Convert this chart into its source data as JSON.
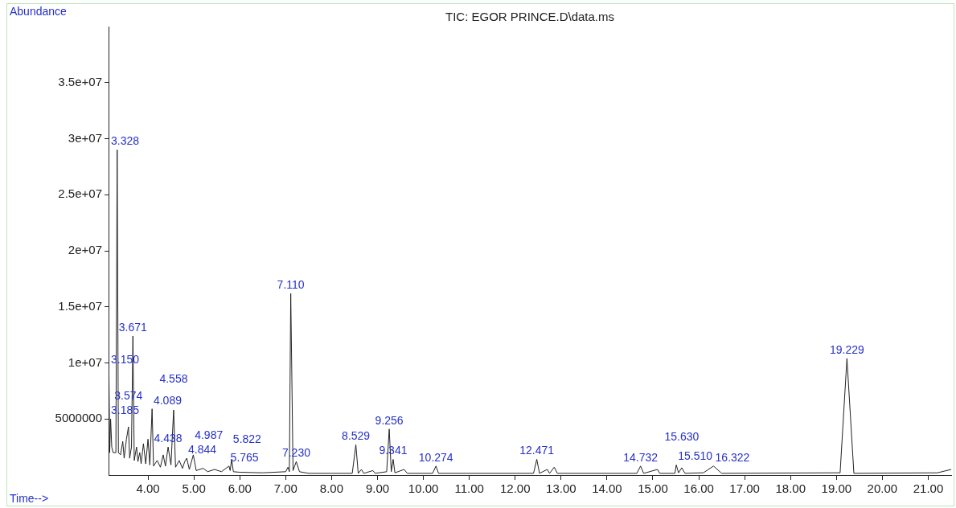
{
  "chart_data": {
    "type": "line",
    "title": "TIC: EGOR PRINCE.D\\data.ms",
    "xlabel": "Time-->",
    "ylabel": "Abundance",
    "xlim": [
      3.14,
      21.5
    ],
    "ylim": [
      0,
      40000000
    ],
    "xticks": [
      {
        "value": 4,
        "label": "4.00"
      },
      {
        "value": 5,
        "label": "5.00"
      },
      {
        "value": 6,
        "label": "6.00"
      },
      {
        "value": 7,
        "label": "7.00"
      },
      {
        "value": 8,
        "label": "8.00"
      },
      {
        "value": 9,
        "label": "9.00"
      },
      {
        "value": 10,
        "label": "10.00"
      },
      {
        "value": 11,
        "label": "11.00"
      },
      {
        "value": 12,
        "label": "12.00"
      },
      {
        "value": 13,
        "label": "13.00"
      },
      {
        "value": 14,
        "label": "14.00"
      },
      {
        "value": 15,
        "label": "15.00"
      },
      {
        "value": 16,
        "label": "16.00"
      },
      {
        "value": 17,
        "label": "17.00"
      },
      {
        "value": 18,
        "label": "18.00"
      },
      {
        "value": 19,
        "label": "19.00"
      },
      {
        "value": 20,
        "label": "20.00"
      },
      {
        "value": 21,
        "label": "21.00"
      }
    ],
    "yticks": [
      5000000,
      {
        "value": 10000000,
        "label": "1e+07"
      },
      {
        "value": 15000000,
        "label": "1.5e+07"
      },
      {
        "value": 20000000,
        "label": "2e+07"
      },
      {
        "value": 25000000,
        "label": "2.5e+07"
      },
      {
        "value": 30000000,
        "label": "3e+07"
      },
      {
        "value": 35000000,
        "label": "3.5e+07"
      }
    ],
    "series": [
      {
        "color": "#222222",
        "x": [
          3.14,
          3.145,
          3.15,
          3.165,
          3.185,
          3.21,
          3.24,
          3.3,
          3.328,
          3.355,
          3.4,
          3.45,
          3.48,
          3.53,
          3.574,
          3.6,
          3.64,
          3.671,
          3.7,
          3.75,
          3.78,
          3.82,
          3.85,
          3.9,
          3.95,
          4.0,
          4.04,
          4.089,
          4.12,
          4.2,
          4.27,
          4.33,
          4.38,
          4.438,
          4.5,
          4.558,
          4.6,
          4.68,
          4.75,
          4.8,
          4.844,
          4.9,
          4.987,
          5.05,
          5.2,
          5.3,
          5.45,
          5.6,
          5.765,
          5.79,
          5.822,
          5.86,
          6.0,
          6.5,
          7.0,
          7.05,
          7.08,
          7.11,
          7.16,
          7.23,
          7.3,
          7.5,
          8.0,
          8.45,
          8.529,
          8.58,
          8.65,
          8.7,
          8.9,
          8.95,
          9.2,
          9.256,
          9.3,
          9.341,
          9.38,
          9.58,
          9.65,
          10.2,
          10.274,
          10.33,
          12.4,
          12.471,
          12.53,
          12.7,
          12.75,
          12.85,
          12.92,
          14.65,
          14.732,
          14.8,
          15.1,
          15.15,
          15.48,
          15.51,
          15.56,
          15.63,
          15.7,
          16.1,
          16.322,
          16.5,
          19.08,
          19.229,
          19.38,
          21.2,
          21.5
        ],
        "values": [
          39000000,
          2500000,
          9500000,
          2000000,
          5000000,
          2500000,
          2000000,
          2000000,
          29000000,
          2000000,
          1800000,
          3000000,
          1500000,
          3200000,
          4300000,
          1500000,
          2500000,
          12400000,
          1300000,
          2500000,
          1200000,
          2000000,
          1000000,
          2800000,
          1000000,
          3200000,
          900000,
          5900000,
          800000,
          1300000,
          700000,
          1800000,
          800000,
          2500000,
          900000,
          5800000,
          700000,
          1300000,
          600000,
          1200000,
          1500000,
          500000,
          1800000,
          400000,
          600000,
          300000,
          500000,
          300000,
          800000,
          400000,
          1400000,
          300000,
          250000,
          200000,
          300000,
          700000,
          300000,
          16200000,
          400000,
          1200000,
          300000,
          150000,
          150000,
          150000,
          2700000,
          150000,
          500000,
          150000,
          400000,
          150000,
          300000,
          4100000,
          300000,
          1400000,
          200000,
          500000,
          150000,
          150000,
          800000,
          150000,
          150000,
          1400000,
          150000,
          500000,
          150000,
          700000,
          150000,
          150000,
          800000,
          150000,
          500000,
          150000,
          150000,
          900000,
          200000,
          650000,
          150000,
          200000,
          800000,
          150000,
          200000,
          10400000,
          150000,
          200000,
          500000
        ]
      }
    ],
    "annotations": [
      {
        "text": "3.150",
        "x": 3.15,
        "y": 9500000
      },
      {
        "text": "3.185",
        "x": 3.185,
        "y": 5000000
      },
      {
        "text": "3.328",
        "x": 3.328,
        "y": 29000000
      },
      {
        "text": "3.574",
        "x": 3.574,
        "y": 4300000
      },
      {
        "text": "3.671",
        "x": 3.671,
        "y": 12400000
      },
      {
        "text": "4.089",
        "x": 4.089,
        "y": 5900000
      },
      {
        "text": "4.438",
        "x": 4.438,
        "y": 2500000
      },
      {
        "text": "4.558",
        "x": 4.558,
        "y": 5800000
      },
      {
        "text": "4.844",
        "x": 4.844,
        "y": 1500000
      },
      {
        "text": "4.987",
        "x": 4.987,
        "y": 1800000
      },
      {
        "text": "5.765",
        "x": 5.765,
        "y": 800000
      },
      {
        "text": "5.822",
        "x": 5.822,
        "y": 1400000
      },
      {
        "text": "7.110",
        "x": 7.11,
        "y": 16200000
      },
      {
        "text": "7.230",
        "x": 7.23,
        "y": 1200000
      },
      {
        "text": "8.529",
        "x": 8.529,
        "y": 2700000
      },
      {
        "text": "9.256",
        "x": 9.256,
        "y": 4100000
      },
      {
        "text": "9.341",
        "x": 9.341,
        "y": 1400000
      },
      {
        "text": "10.274",
        "x": 10.274,
        "y": 800000
      },
      {
        "text": "12.471",
        "x": 12.471,
        "y": 1400000
      },
      {
        "text": "14.732",
        "x": 14.732,
        "y": 800000
      },
      {
        "text": "15.510",
        "x": 15.51,
        "y": 900000
      },
      {
        "text": "15.630",
        "x": 15.63,
        "y": 650000
      },
      {
        "text": "16.322",
        "x": 16.322,
        "y": 800000
      },
      {
        "text": "19.229",
        "x": 19.229,
        "y": 10400000
      }
    ]
  }
}
